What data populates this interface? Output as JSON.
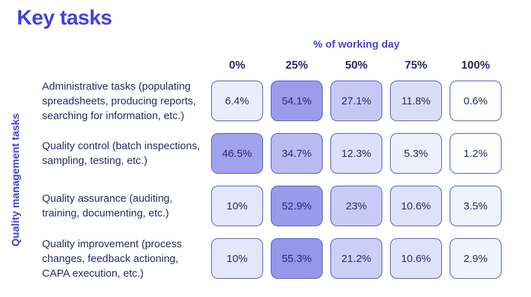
{
  "page": {
    "title": "Key tasks",
    "background": "#ffffff"
  },
  "style": {
    "accent": "#4342d9",
    "text_dark": "#232968",
    "cell_text": "#252a6e",
    "cell_border": "#545bc8"
  },
  "chart_data": {
    "type": "heatmap",
    "title": "Key tasks",
    "xlabel": "% of working day",
    "ylabel": "Quality management tasks",
    "value_suffix": "%",
    "legend": "none",
    "columns": [
      "0%",
      "25%",
      "50%",
      "75%",
      "100%"
    ],
    "rows": [
      {
        "label": "Administrative tasks (populating spreadsheets, producing reports, searching for information, etc.)",
        "values": [
          6.4,
          54.1,
          27.1,
          11.8,
          0.6
        ],
        "colors": [
          "#ebedfa",
          "#9b9dec",
          "#c6c8f3",
          "#dbddf7",
          "#fefeff"
        ]
      },
      {
        "label": "Quality control (batch inspections, sampling, testing, etc.)",
        "values": [
          46.5,
          34.7,
          12.3,
          5.3,
          1.2
        ],
        "colors": [
          "#a0a2ec",
          "#b8baf0",
          "#dedff8",
          "#edeffb",
          "#fefeff"
        ]
      },
      {
        "label": "Quality assurance (auditing, training, documenting, etc.)",
        "values": [
          10,
          52.9,
          23,
          10.6,
          3.5
        ],
        "colors": [
          "#e5e6f9",
          "#999bec",
          "#c9cbf4",
          "#dfe1f8",
          "#f0f2fc"
        ]
      },
      {
        "label": "Quality improvement (process changes, feedback actioning, CAPA execution, etc.)",
        "values": [
          10,
          55.3,
          21.2,
          10.6,
          2.9
        ],
        "colors": [
          "#e5e6f9",
          "#9597ea",
          "#cdcff4",
          "#dfe1f8",
          "#f2f3fc"
        ]
      }
    ]
  }
}
